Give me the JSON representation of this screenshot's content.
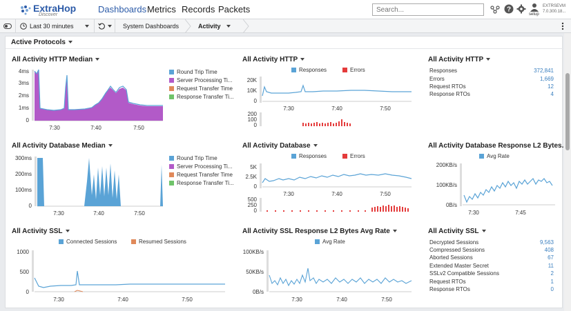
{
  "app": {
    "logo": "ExtraHop",
    "logo_sub": "Discover"
  },
  "nav": {
    "items": [
      "Dashboards",
      "Metrics",
      "Records",
      "Packets"
    ]
  },
  "search": {
    "placeholder": "Search..."
  },
  "user": {
    "setup_label": "setup",
    "system_name": "EXTRSEVM",
    "version": "7.0.300.18..."
  },
  "toolbar": {
    "time_range": "Last 30 minutes",
    "breadcrumb_root": "System Dashboards",
    "breadcrumb_current": "Activity"
  },
  "section": {
    "title": "Active Protocols"
  },
  "colors": {
    "rtt": "#5aa3d6",
    "server": "#b25ac8",
    "request": "#e0895a",
    "response": "#6fc36a",
    "errors": "#e43b3b",
    "accent": "#2c5ba8",
    "value": "#3a7fbf"
  },
  "widgets": {
    "http_median": {
      "title": "All Activity HTTP Median",
      "legend": [
        "Round Trip Time",
        "Server Processing Ti...",
        "Request Transfer Time",
        "Response Transfer Ti..."
      ],
      "y_ticks": [
        "4ms",
        "3ms",
        "2ms",
        "1ms",
        "0"
      ],
      "x_ticks": [
        "7:30",
        "7:40",
        "7:50"
      ]
    },
    "http": {
      "title": "All Activity HTTP",
      "legend": [
        "Responses",
        "Errors"
      ],
      "y_ticks": [
        "20K",
        "10K",
        "0"
      ],
      "y2_ticks": [
        "200",
        "100",
        "0"
      ],
      "x_ticks": [
        "7:30",
        "7:40",
        "7:50"
      ]
    },
    "http_stats": {
      "title": "All Activity HTTP",
      "rows": [
        {
          "label": "Responses",
          "value": "372,841"
        },
        {
          "label": "Errors",
          "value": "1,669"
        },
        {
          "label": "Request RTOs",
          "value": "12"
        },
        {
          "label": "Response RTOs",
          "value": "4"
        }
      ]
    },
    "db_median": {
      "title": "All Activity Database Median",
      "legend": [
        "Round Trip Time",
        "Server Processing Ti...",
        "Request Transfer Time",
        "Response Transfer Ti..."
      ],
      "y_ticks": [
        "300ms",
        "200ms",
        "100ms",
        "0"
      ],
      "x_ticks": [
        "7:30",
        "7:40",
        "7:50"
      ]
    },
    "db": {
      "title": "All Activity Database",
      "legend": [
        "Responses",
        "Errors"
      ],
      "y_ticks": [
        "5K",
        "2.5K",
        "0"
      ],
      "y2_ticks": [
        "500",
        "250",
        "0"
      ],
      "x_ticks": [
        "7:30",
        "7:40",
        "7:50"
      ]
    },
    "db_l2": {
      "title": "All Activity Database Response L2 Bytes...",
      "legend": [
        "Avg Rate"
      ],
      "y_ticks": [
        "200KB/s",
        "100KB/s",
        "0B/s"
      ],
      "x_ticks": [
        "7:30",
        "7:45"
      ]
    },
    "ssl": {
      "title": "All Activity SSL",
      "legend": [
        "Connected Sessions",
        "Resumed Sessions"
      ],
      "y_ticks": [
        "1000",
        "500",
        "0"
      ],
      "x_ticks": [
        "7:30",
        "7:40",
        "7:50"
      ]
    },
    "ssl_l2": {
      "title": "All Activity SSL Response L2 Bytes Avg Rate",
      "legend": [
        "Avg Rate"
      ],
      "y_ticks": [
        "100KB/s",
        "50KB/s",
        "0B/s"
      ],
      "x_ticks": [
        "7:30",
        "7:40",
        "7:50"
      ]
    },
    "ssl_stats": {
      "title": "All Activity SSL",
      "rows": [
        {
          "label": "Decrypted Sessions",
          "value": "9,563"
        },
        {
          "label": "Compressed Sessions",
          "value": "408"
        },
        {
          "label": "Aborted Sessions",
          "value": "67"
        },
        {
          "label": "Extended Master Secret",
          "value": "11"
        },
        {
          "label": "SSLv2 Compatible Sessions",
          "value": "2"
        },
        {
          "label": "Request RTOs",
          "value": "1"
        },
        {
          "label": "Response RTOs",
          "value": "0"
        }
      ]
    }
  }
}
